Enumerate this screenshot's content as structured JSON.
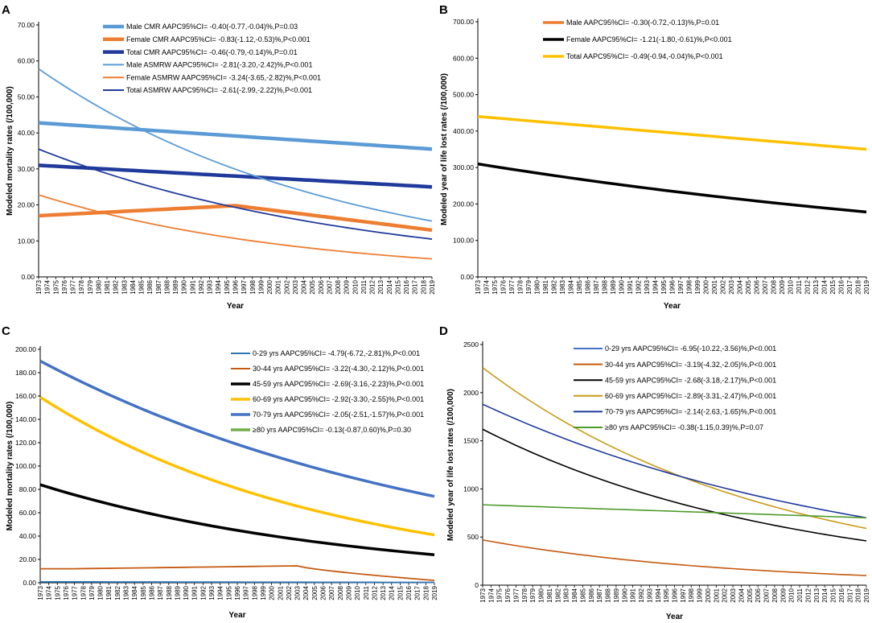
{
  "chart_data": [
    {
      "panel": "A",
      "type": "line",
      "ylabel": "Modeled mortality rates (/100,000)",
      "xlabel": "Year",
      "ylim": [
        0,
        70
      ],
      "yticks": [
        "0.00",
        "10.00",
        "20.00",
        "30.00",
        "40.00",
        "50.00",
        "60.00",
        "70.00"
      ],
      "x_start": 1973,
      "x_end": 2019,
      "series": [
        {
          "name": "Male CMR AAPC95%CI= -0.40(-0.77,-0.04)%,P=0.03",
          "color": "#5B9BD5",
          "width": 4.5,
          "start": 42.8,
          "end": 35.5,
          "curve": "linear"
        },
        {
          "name": "Female CMR  AAPC95%CI= -0.83(-1.12,-0.53)%,P<0.001",
          "color": "#ED7D31",
          "width": 4.5,
          "start": 17.0,
          "peak_year": 1996,
          "peak": 19.8,
          "end": 13.0,
          "curve": "hump"
        },
        {
          "name": "Total CMR  AAPC95%CI= -0.46(-0.79,-0.14)%,P=0.01",
          "color": "#203A9C",
          "width": 4.5,
          "start": 31.0,
          "end": 25.0,
          "curve": "linear"
        },
        {
          "name": "Male ASMRW  AAPC95%CI= -2.81(-3.20,-2.42)%,P<0.001",
          "color": "#5B9BD5",
          "width": 1.8,
          "start": 57.8,
          "end": 15.5,
          "curve": "exp"
        },
        {
          "name": "Female ASMRW  AAPC95%CI= -3.24(-3.65,-2.82)%,P<0.001",
          "color": "#ED7D31",
          "width": 1.8,
          "start": 22.8,
          "end": 5.0,
          "curve": "exp"
        },
        {
          "name": "Total ASMRW  AAPC95%CI= -2.61(-2.99,-2.22)%,P<0.001",
          "color": "#203A9C",
          "width": 1.8,
          "start": 35.5,
          "end": 10.5,
          "curve": "exp"
        }
      ]
    },
    {
      "panel": "B",
      "type": "line",
      "ylabel": "Modeled year of life lost rates (/100,000)",
      "xlabel": "Year",
      "ylim": [
        0,
        700
      ],
      "yticks": [
        "0.00",
        "100.00",
        "200.00",
        "300.00",
        "400.00",
        "500.00",
        "600.00",
        "700.00"
      ],
      "x_start": 1973,
      "x_end": 2019,
      "series": [
        {
          "name": "Male AAPC95%CI= -0.30(-0.72,-0.13)%,P=0.01",
          "color": "#ED7D31",
          "width": 3.5,
          "start": null,
          "end": null,
          "curve": "none"
        },
        {
          "name": "Female AAPC95%CI= -1.21(-1.80,-0.61)%,P<0.001",
          "color": "#000000",
          "width": 3.5,
          "start": 310,
          "end": 178,
          "curve": "exp"
        },
        {
          "name": "Total AAPC95%CI= -0.49(-0.94,-0.04)%,P<0.001",
          "color": "#FFC000",
          "width": 3.5,
          "start": 440,
          "end": 350,
          "curve": "linear"
        }
      ]
    },
    {
      "panel": "C",
      "type": "line",
      "ylabel": "Modeled mortality rates (/100,000)",
      "xlabel": "Year",
      "ylim": [
        0,
        200
      ],
      "yticks": [
        "0.00",
        "20.00",
        "40.00",
        "60.00",
        "80.00",
        "100.00",
        "120.00",
        "140.00",
        "160.00",
        "180.00",
        "200.00"
      ],
      "x_start": 1973,
      "x_end": 2019,
      "series": [
        {
          "name": "0-29 yrs AAPC95%CI= -4.79(-6.72,-2.81)%,P<0.001",
          "color": "#2E75B6",
          "width": 1.8,
          "start": 0.8,
          "end": 0.3,
          "curve": "linear"
        },
        {
          "name": "30-44  yrs AAPC95%CI= -3.22(-4.30,-2.12)%,P<0.001",
          "color": "#C55A11",
          "width": 1.8,
          "start": 12,
          "plateau_year": 2003,
          "plateau": 14.5,
          "end": 2,
          "curve": "plateau"
        },
        {
          "name": "45-59  yrs AAPC95%CI= -2.69(-3.16,-2.23)%,P<0.001",
          "color": "#000000",
          "width": 3.5,
          "start": 84,
          "end": 24,
          "curve": "exp"
        },
        {
          "name": "60-69  yrs AAPC95%CI= -2.92(-3.30,-2.55)%,P<0.001",
          "color": "#FFC000",
          "width": 3.5,
          "start": 159,
          "end": 41,
          "curve": "exp"
        },
        {
          "name": "70-79  yrs AAPC95%CI= -2.05(-2.51,-1.57)%,P<0.001",
          "color": "#4472C4",
          "width": 3.5,
          "start": 190,
          "end": 74,
          "curve": "exp"
        },
        {
          "name": "≥80 yrs AAPC95%CI= -0.13(-0.87,0.60)%,P=0.30",
          "color": "#70AD47",
          "width": 3.5,
          "start": null,
          "end": null,
          "curve": "none"
        }
      ]
    },
    {
      "panel": "D",
      "type": "line",
      "ylabel": "Modeled year of life lost rates (/100,000)",
      "xlabel": "Year",
      "ylim": [
        0,
        2500
      ],
      "yticks": [
        "0",
        "500",
        "1000",
        "1500",
        "2000",
        "2500"
      ],
      "x_start": 1973,
      "x_end": 2019,
      "series": [
        {
          "name": "0-29 yrs AAPC95%CI= -6.95(-10.22,-3.56)%,P<0.001",
          "color": "#4472C4",
          "width": 1.6,
          "start": null,
          "end": null,
          "curve": "none"
        },
        {
          "name": "30-44 yrs AAPC95%CI= -3.19(-4.32,-2.05)%,P<0.001",
          "color": "#C55A11",
          "width": 1.6,
          "start": 470,
          "end": 100,
          "curve": "exp"
        },
        {
          "name": "45-59 yrs AAPC95%CI= -2.68(-3.18,-2.17)%,P<0.001",
          "color": "#000000",
          "width": 1.6,
          "start": 1620,
          "end": 460,
          "curve": "exp"
        },
        {
          "name": "60-69 yrs AAPC95%CI= -2.89(-3.31,-2.47)%,P<0.001",
          "color": "#C99A16",
          "width": 1.6,
          "start": 2260,
          "end": 590,
          "curve": "exp"
        },
        {
          "name": "70-79 yrs AAPC95%CI= -2.14(-2.63,-1.65)%,P<0.001",
          "color": "#203A9C",
          "width": 1.6,
          "start": 1880,
          "end": 700,
          "curve": "exp"
        },
        {
          "name": "≥80 yrs AAPC95%CI= -0.38(-1.15,0.39)%,P=0.07",
          "color": "#4E9A2A",
          "width": 1.6,
          "start": 835,
          "end": 700,
          "curve": "linear"
        }
      ]
    }
  ]
}
